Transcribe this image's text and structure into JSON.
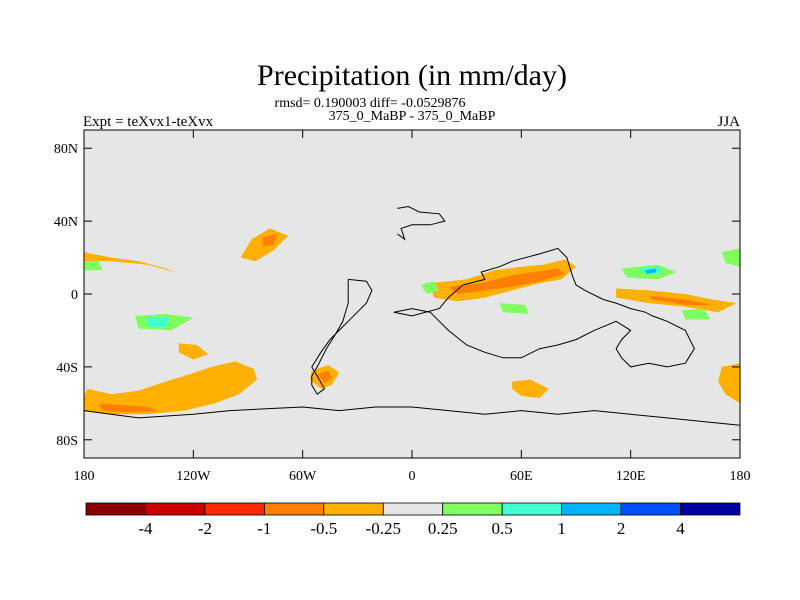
{
  "chart_data": {
    "type": "contour-map",
    "title": "Precipitation (in mm/day)",
    "stats_label": "rmsd= 0.190003 diff= -0.0529876",
    "case_label": "375_0_MaBP - 375_0_MaBP",
    "experiment_label": "Expt = teXvx1-teXvx",
    "season_label": "JJA",
    "lon_range": [
      -180,
      180
    ],
    "lat_range": [
      -90,
      90
    ],
    "x_ticks": [
      {
        "value": -180,
        "label": "180"
      },
      {
        "value": -120,
        "label": "120W"
      },
      {
        "value": -60,
        "label": "60W"
      },
      {
        "value": 0,
        "label": "0"
      },
      {
        "value": 60,
        "label": "60E"
      },
      {
        "value": 120,
        "label": "120E"
      },
      {
        "value": 180,
        "label": "180"
      }
    ],
    "y_ticks": [
      {
        "value": 80,
        "label": "80N"
      },
      {
        "value": 40,
        "label": "40N"
      },
      {
        "value": 0,
        "label": "0"
      },
      {
        "value": -40,
        "label": "40S"
      },
      {
        "value": -80,
        "label": "80S"
      }
    ],
    "background_color": "#e6e6e6",
    "colorbar": {
      "colors": [
        "#8b0000",
        "#cd0000",
        "#ff2a00",
        "#ff7f00",
        "#ffb000",
        "#e6e6e6",
        "#80ff60",
        "#40ffd0",
        "#00b4ff",
        "#0050ff",
        "#0000a0"
      ],
      "labels": [
        "-4",
        "-2",
        "-1",
        "-0.5",
        "-0.25",
        "0.25",
        "0.5",
        "1",
        "2",
        "4"
      ]
    },
    "anomalies": [
      {
        "name": "south-pacific-band",
        "level": "-0.25",
        "color": "#ffb000",
        "pts": [
          [
            -178,
            -52
          ],
          [
            -165,
            -55
          ],
          [
            -150,
            -53
          ],
          [
            -135,
            -48
          ],
          [
            -122,
            -44
          ],
          [
            -110,
            -40
          ],
          [
            -97,
            -37
          ],
          [
            -87,
            -41
          ],
          [
            -85,
            -47
          ],
          [
            -95,
            -55
          ],
          [
            -108,
            -60
          ],
          [
            -125,
            -64
          ],
          [
            -145,
            -66
          ],
          [
            -165,
            -66
          ],
          [
            -180,
            -64
          ],
          [
            -180,
            -56
          ]
        ]
      },
      {
        "name": "south-pacific-core",
        "level": "-0.5",
        "color": "#ff7f00",
        "pts": [
          [
            -172,
            -60
          ],
          [
            -158,
            -61
          ],
          [
            -145,
            -62
          ],
          [
            -140,
            -64
          ],
          [
            -155,
            -65
          ],
          [
            -170,
            -64
          ]
        ]
      },
      {
        "name": "andes-south",
        "level": "-0.25",
        "color": "#ffb000",
        "pts": [
          [
            -55,
            -42
          ],
          [
            -46,
            -39
          ],
          [
            -40,
            -43
          ],
          [
            -44,
            -50
          ],
          [
            -50,
            -52
          ],
          [
            -56,
            -47
          ]
        ]
      },
      {
        "name": "andes-south-core",
        "level": "-0.5",
        "color": "#ff7f00",
        "pts": [
          [
            -52,
            -44
          ],
          [
            -46,
            -42
          ],
          [
            -44,
            -46
          ],
          [
            -48,
            -49
          ]
        ]
      },
      {
        "name": "pacific-storm-40n",
        "level": "-0.25",
        "color": "#ffb000",
        "pts": [
          [
            -88,
            30
          ],
          [
            -78,
            36
          ],
          [
            -68,
            32
          ],
          [
            -76,
            24
          ],
          [
            -86,
            18
          ],
          [
            -94,
            20
          ]
        ]
      },
      {
        "name": "pacific-storm-core",
        "level": "-0.5",
        "color": "#ff7f00",
        "pts": [
          [
            -82,
            31
          ],
          [
            -74,
            33
          ],
          [
            -76,
            27
          ],
          [
            -82,
            26
          ]
        ]
      },
      {
        "name": "north-pacific-band",
        "level": "-0.25",
        "color": "#ffb000",
        "pts": [
          [
            -180,
            23
          ],
          [
            -165,
            20
          ],
          [
            -150,
            18
          ],
          [
            -135,
            14
          ],
          [
            -130,
            12
          ],
          [
            -145,
            16
          ],
          [
            -165,
            18
          ],
          [
            -180,
            18
          ]
        ]
      },
      {
        "name": "west-africa-arabia",
        "level": "-0.25",
        "color": "#ffb000",
        "pts": [
          [
            10,
            6
          ],
          [
            30,
            8
          ],
          [
            45,
            13
          ],
          [
            60,
            15
          ],
          [
            72,
            16
          ],
          [
            84,
            19
          ],
          [
            90,
            15
          ],
          [
            82,
            8
          ],
          [
            70,
            6
          ],
          [
            55,
            2
          ],
          [
            40,
            -2
          ],
          [
            25,
            -4
          ],
          [
            12,
            -2
          ]
        ]
      },
      {
        "name": "africa-india-core",
        "level": "-0.5",
        "color": "#ff7f00",
        "pts": [
          [
            20,
            4
          ],
          [
            38,
            6
          ],
          [
            54,
            10
          ],
          [
            66,
            12
          ],
          [
            80,
            14
          ],
          [
            84,
            11
          ],
          [
            70,
            7
          ],
          [
            55,
            4
          ],
          [
            40,
            2
          ],
          [
            25,
            0
          ]
        ]
      },
      {
        "name": "indian-ocean-band",
        "level": "-0.25",
        "color": "#ffb000",
        "pts": [
          [
            112,
            3
          ],
          [
            130,
            2
          ],
          [
            150,
            0
          ],
          [
            165,
            -3
          ],
          [
            178,
            -5
          ],
          [
            168,
            -10
          ],
          [
            150,
            -7
          ],
          [
            130,
            -5
          ],
          [
            112,
            -2
          ]
        ]
      },
      {
        "name": "indian-ocean-core",
        "level": "-0.5",
        "color": "#ff7f00",
        "pts": [
          [
            130,
            -1
          ],
          [
            150,
            -3
          ],
          [
            165,
            -6
          ],
          [
            150,
            -6
          ],
          [
            132,
            -3
          ]
        ]
      },
      {
        "name": "south-indian-ocean",
        "level": "-0.25",
        "color": "#ffb000",
        "pts": [
          [
            55,
            -48
          ],
          [
            65,
            -47
          ],
          [
            75,
            -52
          ],
          [
            70,
            -57
          ],
          [
            60,
            -56
          ],
          [
            55,
            -52
          ]
        ]
      },
      {
        "name": "sw-pacific-blob",
        "level": "-0.25",
        "color": "#ffb000",
        "pts": [
          [
            -128,
            -27
          ],
          [
            -118,
            -28
          ],
          [
            -112,
            -33
          ],
          [
            -120,
            -36
          ],
          [
            -128,
            -32
          ]
        ]
      },
      {
        "name": "east-edge-south",
        "level": "-0.25",
        "color": "#ffb000",
        "pts": [
          [
            170,
            -40
          ],
          [
            180,
            -38
          ],
          [
            180,
            -60
          ],
          [
            172,
            -55
          ],
          [
            168,
            -48
          ]
        ]
      },
      {
        "name": "nw-africa-green",
        "level": "0.25",
        "color": "#80ff60",
        "pts": [
          [
            5,
            5
          ],
          [
            12,
            7
          ],
          [
            15,
            2
          ],
          [
            8,
            0
          ]
        ]
      },
      {
        "name": "tropical-west-pacific-green",
        "level": "0.25",
        "color": "#80ff60",
        "pts": [
          [
            115,
            14
          ],
          [
            135,
            16
          ],
          [
            145,
            12
          ],
          [
            135,
            8
          ],
          [
            118,
            9
          ]
        ]
      },
      {
        "name": "tropical-west-pacific-cyan",
        "level": "0.5",
        "color": "#40ffd0",
        "pts": [
          [
            125,
            14
          ],
          [
            135,
            15
          ],
          [
            138,
            12
          ],
          [
            128,
            11
          ]
        ]
      },
      {
        "name": "tropical-west-pacific-blue",
        "level": "1",
        "color": "#00b4ff",
        "pts": [
          [
            128,
            13
          ],
          [
            134,
            14
          ],
          [
            134,
            12
          ],
          [
            129,
            11
          ]
        ]
      },
      {
        "name": "sw-pacific-green",
        "level": "0.25",
        "color": "#80ff60",
        "pts": [
          [
            -152,
            -12
          ],
          [
            -135,
            -11
          ],
          [
            -120,
            -13
          ],
          [
            -132,
            -20
          ],
          [
            -150,
            -19
          ]
        ]
      },
      {
        "name": "sw-pacific-cyan",
        "level": "0.5",
        "color": "#40ffd0",
        "pts": [
          [
            -145,
            -13
          ],
          [
            -133,
            -13
          ],
          [
            -135,
            -18
          ],
          [
            -145,
            -18
          ]
        ]
      },
      {
        "name": "east-pacific-green",
        "level": "0.25",
        "color": "#80ff60",
        "pts": [
          [
            148,
            -9
          ],
          [
            160,
            -8
          ],
          [
            164,
            -14
          ],
          [
            150,
            -14
          ]
        ]
      },
      {
        "name": "nh-africa-green-strip",
        "level": "0.25",
        "color": "#80ff60",
        "pts": [
          [
            48,
            -5
          ],
          [
            62,
            -6
          ],
          [
            64,
            -11
          ],
          [
            50,
            -10
          ]
        ]
      },
      {
        "name": "east-edge-north-green",
        "level": "0.25",
        "color": "#80ff60",
        "pts": [
          [
            170,
            23
          ],
          [
            180,
            25
          ],
          [
            180,
            15
          ],
          [
            172,
            17
          ]
        ]
      },
      {
        "name": "far-west-green",
        "level": "0.25",
        "color": "#80ff60",
        "pts": [
          [
            -180,
            18
          ],
          [
            -172,
            18
          ],
          [
            -170,
            13
          ],
          [
            -180,
            13
          ]
        ]
      }
    ],
    "coastlines": [
      {
        "name": "south-america-outline",
        "pts": [
          [
            -35,
            8
          ],
          [
            -25,
            7
          ],
          [
            -22,
            2
          ],
          [
            -25,
            -5
          ],
          [
            -30,
            -10
          ],
          [
            -35,
            -15
          ],
          [
            -40,
            -20
          ],
          [
            -45,
            -25
          ],
          [
            -50,
            -32
          ],
          [
            -55,
            -40
          ],
          [
            -52,
            -45
          ],
          [
            -48,
            -52
          ],
          [
            -52,
            -55
          ],
          [
            -55,
            -50
          ],
          [
            -55,
            -45
          ],
          [
            -52,
            -40
          ],
          [
            -47,
            -30
          ],
          [
            -42,
            -22
          ],
          [
            -38,
            -15
          ],
          [
            -35,
            -5
          ],
          [
            -35,
            8
          ]
        ]
      },
      {
        "name": "north-america-africa-outline",
        "pts": [
          [
            -10,
            -10
          ],
          [
            0,
            -12
          ],
          [
            15,
            -8
          ],
          [
            20,
            -2
          ],
          [
            28,
            5
          ],
          [
            40,
            8
          ],
          [
            38,
            12
          ],
          [
            48,
            15
          ],
          [
            55,
            18
          ],
          [
            70,
            22
          ],
          [
            80,
            25
          ],
          [
            85,
            20
          ],
          [
            88,
            10
          ],
          [
            90,
            5
          ],
          [
            95,
            2
          ],
          [
            105,
            -3
          ],
          [
            112,
            -5
          ],
          [
            120,
            -8
          ],
          [
            128,
            -10
          ],
          [
            132,
            -12
          ],
          [
            140,
            -15
          ],
          [
            150,
            -20
          ],
          [
            155,
            -30
          ],
          [
            150,
            -38
          ],
          [
            140,
            -40
          ],
          [
            130,
            -38
          ],
          [
            120,
            -40
          ],
          [
            115,
            -35
          ],
          [
            112,
            -30
          ],
          [
            115,
            -25
          ],
          [
            120,
            -20
          ],
          [
            112,
            -15
          ],
          [
            100,
            -20
          ],
          [
            90,
            -25
          ],
          [
            80,
            -28
          ],
          [
            70,
            -30
          ],
          [
            60,
            -35
          ],
          [
            50,
            -35
          ],
          [
            40,
            -32
          ],
          [
            30,
            -28
          ],
          [
            20,
            -20
          ],
          [
            15,
            -15
          ],
          [
            10,
            -10
          ],
          [
            0,
            -8
          ],
          [
            -10,
            -10
          ]
        ]
      },
      {
        "name": "antarctic-margin",
        "pts": [
          [
            -180,
            -64
          ],
          [
            -150,
            -68
          ],
          [
            -120,
            -66
          ],
          [
            -100,
            -64
          ],
          [
            -80,
            -63
          ],
          [
            -60,
            -62
          ],
          [
            -40,
            -64
          ],
          [
            -20,
            -62
          ],
          [
            0,
            -62
          ],
          [
            20,
            -64
          ],
          [
            40,
            -66
          ],
          [
            60,
            -64
          ],
          [
            80,
            -66
          ],
          [
            100,
            -64
          ],
          [
            120,
            -66
          ],
          [
            140,
            -68
          ],
          [
            160,
            -70
          ],
          [
            180,
            -72
          ]
        ]
      },
      {
        "name": "north-atlantic-island",
        "pts": [
          [
            -8,
            47
          ],
          [
            -2,
            48
          ],
          [
            4,
            45
          ],
          [
            15,
            44
          ],
          [
            18,
            40
          ],
          [
            10,
            38
          ],
          [
            0,
            38
          ],
          [
            -6,
            36
          ],
          [
            -4,
            30
          ],
          [
            -8,
            33
          ]
        ]
      }
    ]
  }
}
